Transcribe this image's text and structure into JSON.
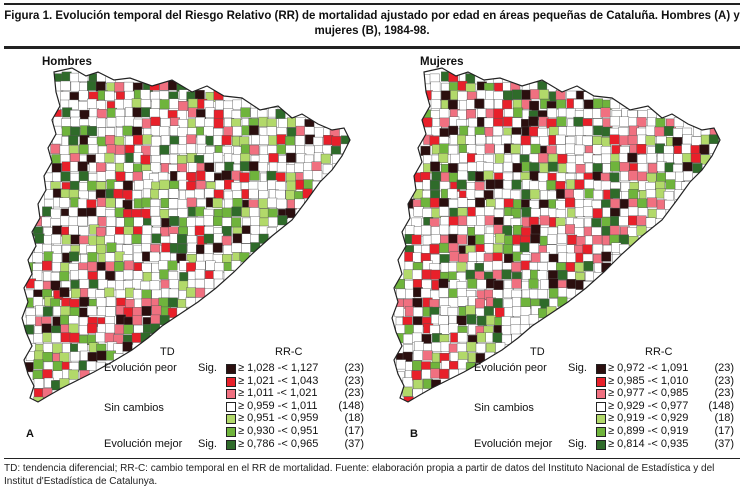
{
  "title": "Figura 1. Evolución temporal del Riesgo Relativo (RR) de mortalidad ajustado por edad en áreas pequeñas de Cataluña. Hombres (A) y mujeres (B), 1984-98.",
  "colors": {
    "dark": "#2b0f0f",
    "red": "#e8202a",
    "pink": "#f07080",
    "white": "#ffffff",
    "light_green": "#b2d96a",
    "green": "#6fb43c",
    "dark_green": "#2f6b2a"
  },
  "panels": [
    {
      "id": "A",
      "title": "Hombres",
      "letter": "A",
      "legend": {
        "col_td": "TD",
        "col_rr": "RR-C",
        "cat_peor": "Evolución peor",
        "cat_sin": "Sin cambios",
        "cat_mejor": "Evolución mejor",
        "sig": "Sig.",
        "rows": [
          {
            "range": "≥ 1,028 -< 1,127",
            "count": "(23)",
            "color": "#2b0f0f"
          },
          {
            "range": "≥ 1,021 -< 1,043",
            "count": "(23)",
            "color": "#e8202a"
          },
          {
            "range": "≥ 1,011 -< 1,021",
            "count": "(23)",
            "color": "#f07080"
          },
          {
            "range": "≥ 0,959 -< 1,011",
            "count": "(148)",
            "color": "#ffffff"
          },
          {
            "range": "≥ 0,951 -< 0,959",
            "count": "(18)",
            "color": "#b2d96a"
          },
          {
            "range": "≥ 0,930 -< 0,951",
            "count": "(17)",
            "color": "#6fb43c"
          },
          {
            "range": "≥ 0,786 -< 0,965",
            "count": "(37)",
            "color": "#2f6b2a"
          }
        ]
      }
    },
    {
      "id": "B",
      "title": "Mujeres",
      "letter": "B",
      "legend": {
        "col_td": "TD",
        "col_rr": "RR-C",
        "cat_peor": "Evolución peor",
        "cat_sin": "Sin cambios",
        "cat_mejor": "Evolución mejor",
        "sig": "Sig.",
        "rows": [
          {
            "range": "≥ 0,972 -< 1,091",
            "count": "(23)",
            "color": "#2b0f0f"
          },
          {
            "range": "≥ 0,985 -< 1,010",
            "count": "(23)",
            "color": "#e8202a"
          },
          {
            "range": "≥ 0,977 -< 0,985",
            "count": "(23)",
            "color": "#f07080"
          },
          {
            "range": "≥ 0,929 -< 0,977",
            "count": "(148)",
            "color": "#ffffff"
          },
          {
            "range": "≥ 0,919 -< 0,929",
            "count": "(18)",
            "color": "#b2d96a"
          },
          {
            "range": "≥ 0,899 -< 0,919",
            "count": "(17)",
            "color": "#6fb43c"
          },
          {
            "range": "≥ 0,814 -< 0,935",
            "count": "(37)",
            "color": "#2f6b2a"
          }
        ]
      }
    }
  ],
  "footer": "TD: tendencia diferencial; RR-C: cambio temporal en el RR de mortalidad. Fuente: elaboración propia a partir de datos del Instituto Nacional de Estadística y del Institut d'Estadística de Catalunya."
}
